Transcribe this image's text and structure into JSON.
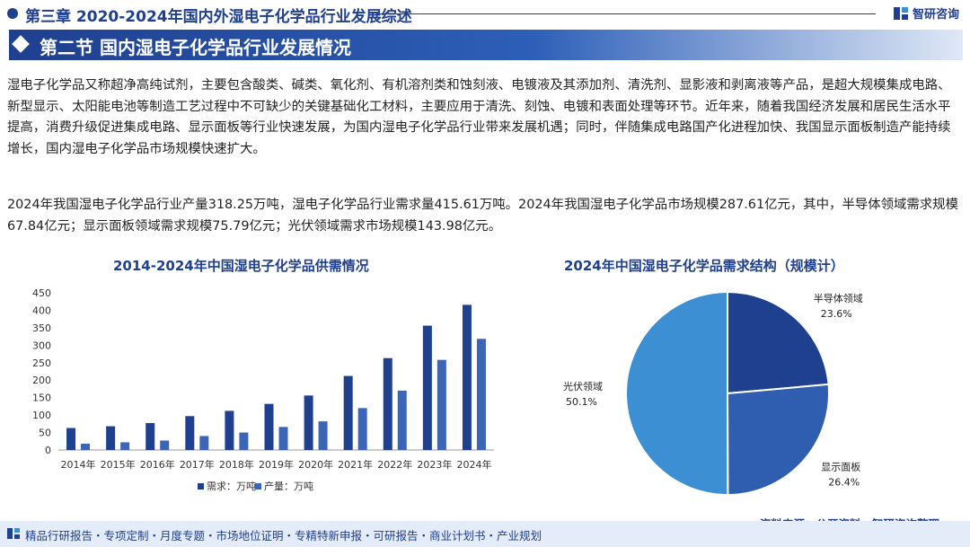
{
  "header": {
    "chapter_title": "第三章 2020-2024年国内外湿电子化学品行业发展综述",
    "brand": "智研咨询"
  },
  "section": {
    "title": "第二节 国内湿电子化学品行业发展情况"
  },
  "paragraphs": [
    "湿电子化学品又称超净高纯试剂，主要包含酸类、碱类、氧化剂、有机溶剂类和蚀刻液、电镀液及其添加剂、清洗剂、显影液和剥离液等产品，是超大规模集成电路、新型显示、太阳能电池等制造工艺过程中不可缺少的关键基础化工材料，主要应用于清洗、刻蚀、电镀和表面处理等环节。近年来，随着我国经济发展和居民生活水平提高，消费升级促进集成电路、显示面板等行业快速发展，为国内湿电子化学品行业带来发展机遇；同时，伴随集成电路国产化进程加快、我国显示面板制造产能持续增长，国内湿电子化学品市场规模快速扩大。",
    "2024年我国湿电子化学品行业产量318.25万吨，湿电子化学品行业需求量415.61万吨。2024年我国湿电子化学品市场规模287.61亿元，其中，半导体领域需求规模67.84亿元；显示面板领域需求规模75.79亿元；光伏领域需求市场规模143.98亿元。"
  ],
  "chart_data": [
    {
      "type": "bar",
      "title": "2014-2024年中国湿电子化学品供需情况",
      "categories": [
        "2014年",
        "2015年",
        "2016年",
        "2017年",
        "2018年",
        "2019年",
        "2020年",
        "2021年",
        "2022年",
        "2023年",
        "2024年"
      ],
      "series": [
        {
          "name": "需求：万吨",
          "color": "#1f3f8f",
          "values": [
            63,
            68,
            77,
            97,
            112,
            132,
            156,
            212,
            263,
            356,
            415.61
          ]
        },
        {
          "name": "产量：万吨",
          "color": "#3b66b8",
          "values": [
            18,
            22,
            27,
            40,
            50,
            66,
            82,
            120,
            170,
            258,
            318.25
          ]
        }
      ],
      "yticks": [
        "0",
        "50",
        "100",
        "150",
        "200",
        "250",
        "300",
        "350",
        "400",
        "450"
      ],
      "ylim": [
        0,
        450
      ],
      "legend": "bottom",
      "grid": false
    },
    {
      "type": "pie",
      "title": "2024年中国湿电子化学品需求结构（规模计）",
      "slices": [
        {
          "label": "半导体领域",
          "value": 23.6,
          "value_label": "23.6%",
          "color": "#1f3f8f"
        },
        {
          "label": "显示面板",
          "value": 26.4,
          "value_label": "26.4%",
          "color": "#2f5db0"
        },
        {
          "label": "光伏领域",
          "value": 50.1,
          "value_label": "50.1%",
          "color": "#3d8fd4"
        }
      ]
    }
  ],
  "footer": {
    "services": "精品行研报告・专项定制・月度专题・市场地位证明・专精特新申报・可研报告・商业计划书・产业规划",
    "source": "资料来源：公开资料、智研咨询整理"
  }
}
